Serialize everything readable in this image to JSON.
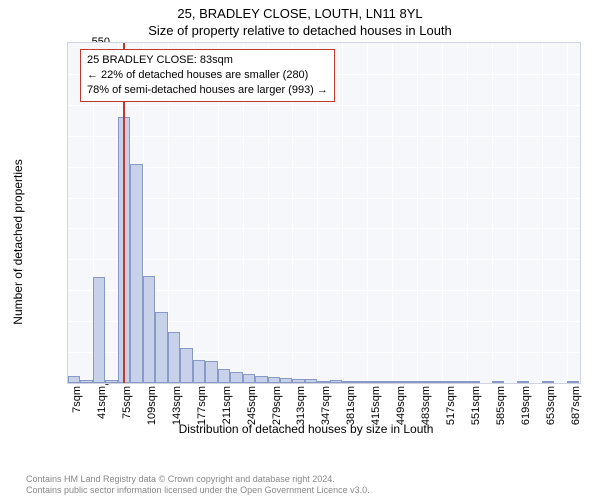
{
  "chart": {
    "type": "histogram",
    "title_line1": "25, BRADLEY CLOSE, LOUTH, LN11 8YL",
    "title_line2": "Size of property relative to detached houses in Louth",
    "ylabel": "Number of detached properties",
    "xlabel": "Distribution of detached houses by size in Louth",
    "xlim": [
      7,
      705
    ],
    "ylim": [
      0,
      550
    ],
    "ytick_step": 50,
    "xtick_start": 7,
    "xtick_step": 34,
    "xtick_suffix": "sqm",
    "bin_start": 7,
    "bin_width": 17,
    "background_color": "#f6f7fb",
    "gridline_color": "#ffffff",
    "border_color": "#d0d4e0",
    "bar_fill": "#c7d1ea",
    "bar_stroke": "#8a9ac7",
    "marker_at_x": 83,
    "marker_color": "#c0392b",
    "annotation": {
      "line1": "25 BRADLEY CLOSE: 83sqm",
      "line2": "← 22% of detached houses are smaller (280)",
      "line3": "78% of semi-detached houses are larger (993) →"
    },
    "values": [
      11,
      5,
      171,
      5,
      430,
      355,
      173,
      115,
      82,
      56,
      38,
      35,
      22,
      18,
      14,
      12,
      10,
      8,
      7,
      6,
      4,
      5,
      4,
      3,
      3,
      2,
      3,
      2,
      2,
      2,
      2,
      2,
      2,
      0,
      2,
      0,
      2,
      0,
      2,
      0,
      3
    ],
    "title_fontsize": 13,
    "label_fontsize": 12,
    "tick_fontsize": 11,
    "annotation_fontsize": 11
  },
  "footer": {
    "line1": "Contains HM Land Registry data © Crown copyright and database right 2024.",
    "line2": "Contains public sector information licensed under the Open Government Licence v3.0."
  }
}
